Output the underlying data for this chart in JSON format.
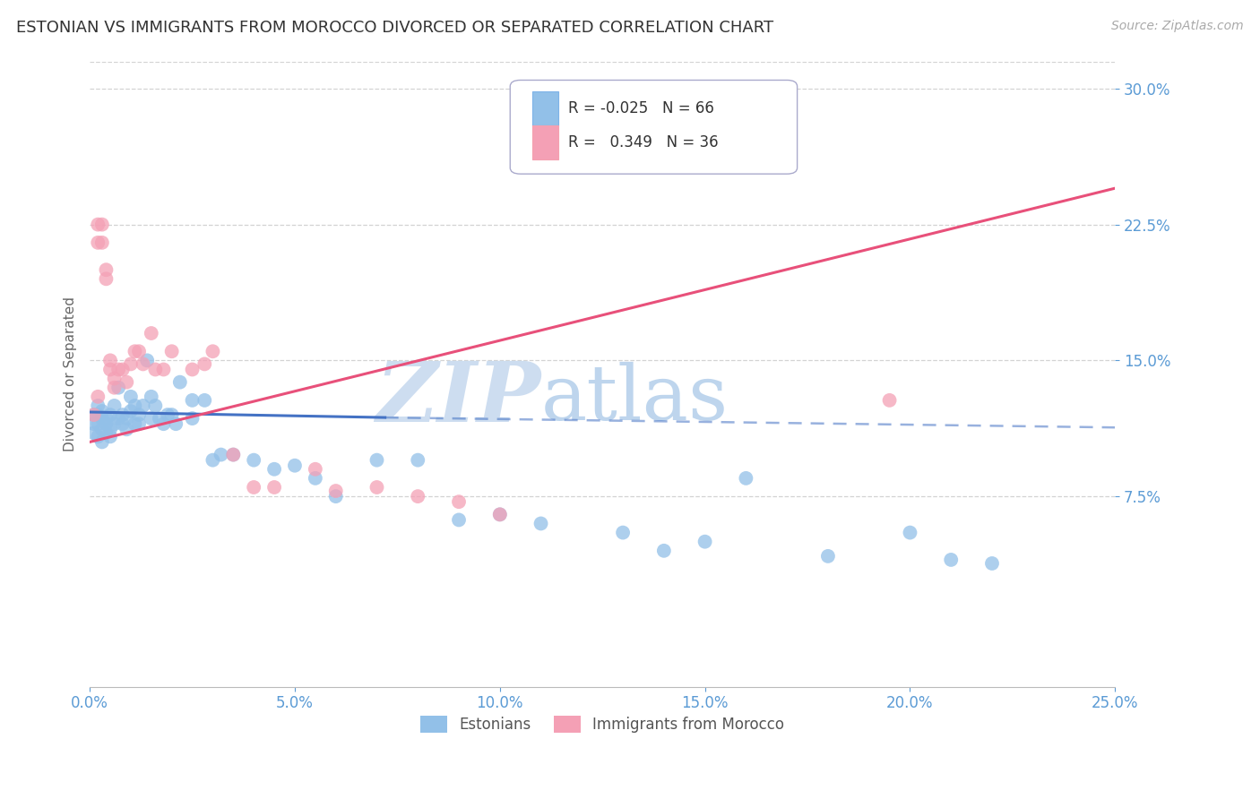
{
  "title": "ESTONIAN VS IMMIGRANTS FROM MOROCCO DIVORCED OR SEPARATED CORRELATION CHART",
  "source": "Source: ZipAtlas.com",
  "ylabel": "Divorced or Separated",
  "xlim": [
    0.0,
    0.25
  ],
  "ylim": [
    -0.03,
    0.315
  ],
  "y_tick_vals": [
    0.075,
    0.15,
    0.225,
    0.3
  ],
  "y_tick_labels": [
    "7.5%",
    "15.0%",
    "22.5%",
    "30.0%"
  ],
  "x_tick_vals": [
    0.0,
    0.05,
    0.1,
    0.15,
    0.2,
    0.25
  ],
  "x_tick_labels": [
    "0.0%",
    "5.0%",
    "10.0%",
    "15.0%",
    "20.0%",
    "25.0%"
  ],
  "estonian_R": -0.025,
  "estonian_N": 66,
  "morocco_R": 0.349,
  "morocco_N": 36,
  "estonian_color": "#92C0E8",
  "morocco_color": "#F4A0B5",
  "estonian_line_color": "#4472C4",
  "morocco_line_color": "#E8507A",
  "background_color": "#FFFFFF",
  "grid_color": "#C8C8C8",
  "axis_label_color": "#5B9BD5",
  "watermark_zip": "ZIP",
  "watermark_atlas": "atlas",
  "watermark_color_zip": "#C5D8EE",
  "watermark_color_atlas": "#A8C8E8",
  "estonian_x": [
    0.001,
    0.001,
    0.001,
    0.002,
    0.002,
    0.002,
    0.002,
    0.003,
    0.003,
    0.003,
    0.003,
    0.004,
    0.004,
    0.004,
    0.005,
    0.005,
    0.005,
    0.006,
    0.006,
    0.007,
    0.007,
    0.008,
    0.008,
    0.009,
    0.009,
    0.01,
    0.01,
    0.011,
    0.011,
    0.012,
    0.012,
    0.013,
    0.014,
    0.015,
    0.015,
    0.016,
    0.017,
    0.018,
    0.019,
    0.02,
    0.021,
    0.022,
    0.025,
    0.025,
    0.028,
    0.03,
    0.032,
    0.035,
    0.04,
    0.045,
    0.05,
    0.055,
    0.06,
    0.07,
    0.08,
    0.09,
    0.1,
    0.11,
    0.13,
    0.14,
    0.15,
    0.16,
    0.18,
    0.2,
    0.21,
    0.22
  ],
  "estonian_y": [
    0.115,
    0.12,
    0.11,
    0.125,
    0.12,
    0.115,
    0.108,
    0.118,
    0.112,
    0.122,
    0.105,
    0.115,
    0.118,
    0.11,
    0.12,
    0.112,
    0.108,
    0.115,
    0.125,
    0.118,
    0.135,
    0.115,
    0.12,
    0.118,
    0.112,
    0.122,
    0.13,
    0.125,
    0.115,
    0.12,
    0.115,
    0.125,
    0.15,
    0.118,
    0.13,
    0.125,
    0.118,
    0.115,
    0.12,
    0.12,
    0.115,
    0.138,
    0.128,
    0.118,
    0.128,
    0.095,
    0.098,
    0.098,
    0.095,
    0.09,
    0.092,
    0.085,
    0.075,
    0.095,
    0.095,
    0.062,
    0.065,
    0.06,
    0.055,
    0.045,
    0.05,
    0.085,
    0.042,
    0.055,
    0.04,
    0.038
  ],
  "morocco_x": [
    0.001,
    0.002,
    0.002,
    0.002,
    0.003,
    0.003,
    0.004,
    0.004,
    0.005,
    0.005,
    0.006,
    0.006,
    0.007,
    0.008,
    0.009,
    0.01,
    0.011,
    0.012,
    0.013,
    0.015,
    0.016,
    0.018,
    0.02,
    0.025,
    0.028,
    0.03,
    0.035,
    0.04,
    0.045,
    0.055,
    0.06,
    0.07,
    0.08,
    0.09,
    0.1,
    0.195
  ],
  "morocco_y": [
    0.12,
    0.225,
    0.215,
    0.13,
    0.225,
    0.215,
    0.2,
    0.195,
    0.145,
    0.15,
    0.14,
    0.135,
    0.145,
    0.145,
    0.138,
    0.148,
    0.155,
    0.155,
    0.148,
    0.165,
    0.145,
    0.145,
    0.155,
    0.145,
    0.148,
    0.155,
    0.098,
    0.08,
    0.08,
    0.09,
    0.078,
    0.08,
    0.075,
    0.072,
    0.065,
    0.128
  ],
  "est_trend_x0": 0.0,
  "est_trend_y0": 0.1215,
  "est_trend_x1_solid": 0.072,
  "est_trend_y1_solid": 0.1185,
  "est_trend_x2": 0.25,
  "est_trend_y2": 0.113,
  "mor_trend_x0": 0.0,
  "mor_trend_y0": 0.105,
  "mor_trend_x1": 0.25,
  "mor_trend_y1": 0.245
}
